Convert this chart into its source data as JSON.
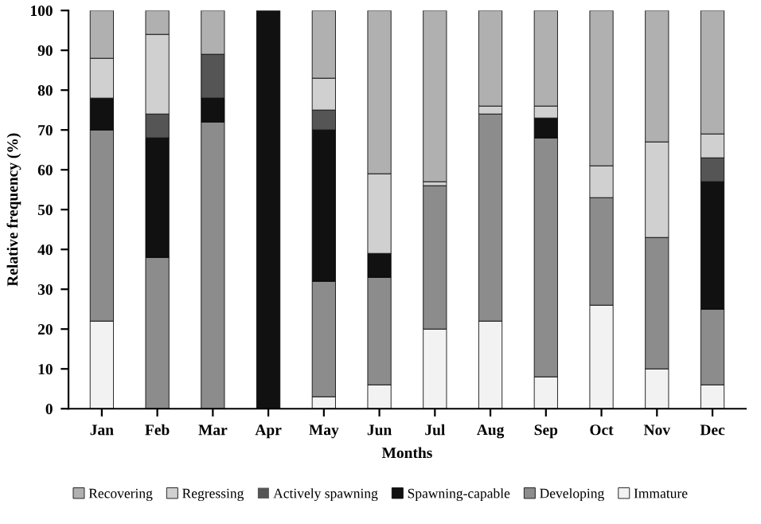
{
  "chart_data": {
    "type": "bar",
    "stacked": true,
    "xlabel": "Months",
    "ylabel": "Relative frequency (%)",
    "categories": [
      "Jan",
      "Feb",
      "Mar",
      "Apr",
      "May",
      "Jun",
      "Jul",
      "Aug",
      "Sep",
      "Oct",
      "Nov",
      "Dec"
    ],
    "series": [
      {
        "name": "Immature",
        "color": "#f2f2f2",
        "values": [
          22,
          0,
          0,
          0,
          3,
          6,
          20,
          22,
          8,
          26,
          10,
          6
        ]
      },
      {
        "name": "Developing",
        "color": "#8c8c8c",
        "values": [
          48,
          38,
          72,
          0,
          29,
          27,
          36,
          52,
          60,
          27,
          33,
          19
        ]
      },
      {
        "name": "Spawning-capable",
        "color": "#111111",
        "values": [
          8,
          30,
          6,
          100,
          38,
          6,
          0,
          0,
          5,
          0,
          0,
          32
        ]
      },
      {
        "name": "Actively spawning",
        "color": "#555555",
        "values": [
          0,
          6,
          11,
          0,
          5,
          0,
          0,
          0,
          0,
          0,
          0,
          6
        ]
      },
      {
        "name": "Regressing",
        "color": "#d0d0d0",
        "values": [
          10,
          20,
          0,
          0,
          8,
          20,
          1,
          2,
          3,
          8,
          24,
          6
        ]
      },
      {
        "name": "Recovering",
        "color": "#b0b0b0",
        "values": [
          12,
          6,
          11,
          0,
          17,
          41,
          43,
          24,
          24,
          39,
          33,
          31
        ]
      }
    ],
    "ylim": [
      0,
      100
    ],
    "yticks": [
      0,
      10,
      20,
      30,
      40,
      50,
      60,
      70,
      80,
      90,
      100
    ],
    "grid": false,
    "legend": "bottom"
  }
}
